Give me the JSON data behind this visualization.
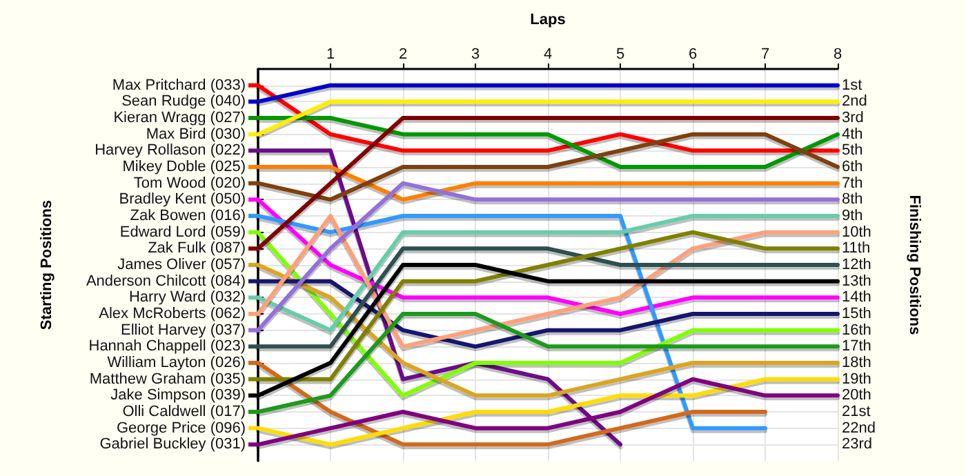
{
  "chart_data": {
    "type": "line",
    "xlabel": "Laps",
    "ylabel": "Finishing Positions",
    "x": [
      0,
      1,
      2,
      3,
      4,
      5,
      6,
      7,
      8
    ],
    "xlim": [
      0,
      8
    ],
    "xticks": [
      1,
      2,
      3,
      4,
      5,
      6,
      7,
      8
    ],
    "ylim": [
      24,
      0
    ],
    "yticks": [
      {
        "value": 1,
        "label": "1st"
      },
      {
        "value": 2,
        "label": "2nd"
      },
      {
        "value": 3,
        "label": "3rd"
      },
      {
        "value": 4,
        "label": "4th"
      },
      {
        "value": 5,
        "label": "5th"
      },
      {
        "value": 6,
        "label": "6th"
      },
      {
        "value": 7,
        "label": "7th"
      },
      {
        "value": 8,
        "label": "8th"
      },
      {
        "value": 9,
        "label": "9th"
      },
      {
        "value": 10,
        "label": "10th"
      },
      {
        "value": 11,
        "label": "11th"
      },
      {
        "value": 12,
        "label": "12th"
      },
      {
        "value": 13,
        "label": "13th"
      },
      {
        "value": 14,
        "label": "14th"
      },
      {
        "value": 15,
        "label": "15th"
      },
      {
        "value": 16,
        "label": "16th"
      },
      {
        "value": 17,
        "label": "17th"
      },
      {
        "value": 18,
        "label": "18th"
      },
      {
        "value": 19,
        "label": "19th"
      },
      {
        "value": 20,
        "label": "20th"
      },
      {
        "value": 21,
        "label": "21st"
      },
      {
        "value": 22,
        "label": "22nd"
      },
      {
        "value": 23,
        "label": "23rd"
      }
    ],
    "annotations": [
      "Starting Positions"
    ],
    "grid": true,
    "legend": "left",
    "marker": "none",
    "line_style": "solid",
    "series": [
      {
        "name": "Max Pritchard (033)",
        "color": "#ff0000",
        "values": [
          1,
          4,
          5,
          5,
          5,
          4,
          5,
          5,
          5
        ]
      },
      {
        "name": "Sean Rudge (040)",
        "color": "#0000cc",
        "values": [
          2,
          1,
          1,
          1,
          1,
          1,
          1,
          1,
          1
        ]
      },
      {
        "name": "Kieran Wragg (027)",
        "color": "#009900",
        "values": [
          3,
          3,
          4,
          4,
          4,
          6,
          6,
          6,
          4
        ]
      },
      {
        "name": "Max Bird (030)",
        "color": "#ffee00",
        "values": [
          4,
          2,
          2,
          2,
          2,
          2,
          2,
          2,
          2
        ]
      },
      {
        "name": "Harvey Rollason (022)",
        "color": "#6a0a8a",
        "values": [
          5,
          5,
          19,
          18,
          19,
          23,
          null,
          null,
          null
        ]
      },
      {
        "name": "Mikey Doble (025)",
        "color": "#ff8000",
        "values": [
          6,
          6,
          8,
          7,
          7,
          7,
          7,
          7,
          7
        ]
      },
      {
        "name": "Tom Wood (020)",
        "color": "#7f4010",
        "values": [
          7,
          8,
          6,
          6,
          6,
          5,
          4,
          4,
          6
        ]
      },
      {
        "name": "Bradley Kent (050)",
        "color": "#ff00ff",
        "values": [
          8,
          12,
          14,
          14,
          14,
          15,
          14,
          14,
          14
        ]
      },
      {
        "name": "Zak Bowen (016)",
        "color": "#3399ff",
        "values": [
          9,
          10,
          9,
          9,
          9,
          9,
          22,
          22,
          null
        ]
      },
      {
        "name": "Edward Lord (059)",
        "color": "#80ff00",
        "values": [
          10,
          15,
          20,
          18,
          18,
          18,
          16,
          16,
          16
        ]
      },
      {
        "name": "Zak Fulk (087)",
        "color": "#800000",
        "values": [
          11,
          7,
          3,
          3,
          3,
          3,
          3,
          3,
          3
        ]
      },
      {
        "name": "James Oliver (057)",
        "color": "#daa520",
        "values": [
          12,
          14,
          18,
          20,
          20,
          19,
          18,
          18,
          18
        ]
      },
      {
        "name": "Anderson Chilcott (084)",
        "color": "#191970",
        "values": [
          13,
          13,
          16,
          17,
          16,
          16,
          15,
          15,
          15
        ]
      },
      {
        "name": "Harry Ward (032)",
        "color": "#66cdaa",
        "values": [
          14,
          16,
          10,
          10,
          10,
          10,
          9,
          9,
          9
        ]
      },
      {
        "name": "Alex McRoberts (062)",
        "color": "#ffa07a",
        "values": [
          15,
          9,
          17,
          16,
          15,
          14,
          11,
          10,
          10
        ]
      },
      {
        "name": "Elliot Harvey (037)",
        "color": "#9370db",
        "values": [
          16,
          11,
          7,
          8,
          8,
          8,
          8,
          8,
          8
        ]
      },
      {
        "name": "Hannah Chappell (023)",
        "color": "#2f4f4f",
        "values": [
          17,
          17,
          11,
          11,
          11,
          12,
          12,
          12,
          12
        ]
      },
      {
        "name": "William Layton (026)",
        "color": "#d2691e",
        "values": [
          18,
          21,
          23,
          23,
          23,
          22,
          21,
          21,
          null
        ]
      },
      {
        "name": "Matthew Graham (035)",
        "color": "#808000",
        "values": [
          19,
          19,
          13,
          13,
          12,
          11,
          10,
          11,
          11
        ]
      },
      {
        "name": "Jake Simpson (039)",
        "color": "#000000",
        "values": [
          20,
          18,
          12,
          12,
          13,
          13,
          13,
          13,
          13
        ]
      },
      {
        "name": "Olli Caldwell (017)",
        "color": "#1a9a1a",
        "values": [
          21,
          20,
          15,
          15,
          17,
          17,
          17,
          17,
          17
        ]
      },
      {
        "name": "George Price (096)",
        "color": "#ffdd00",
        "values": [
          22,
          23,
          22,
          21,
          21,
          20,
          20,
          19,
          19
        ]
      },
      {
        "name": "Gabriel Buckley (031)",
        "color": "#800080",
        "values": [
          23,
          22,
          21,
          22,
          22,
          21,
          19,
          20,
          20
        ]
      }
    ]
  }
}
